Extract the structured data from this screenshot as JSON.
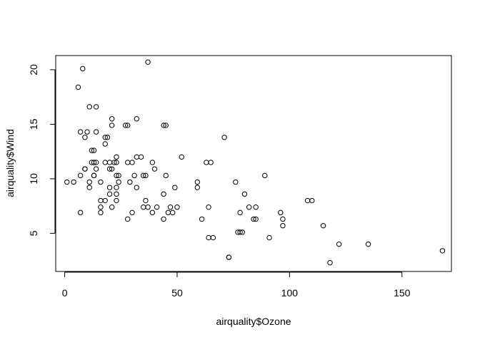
{
  "chart_data": {
    "type": "scatter",
    "title": "",
    "xlabel": "airquality$Ozone",
    "ylabel": "airquality$Wind",
    "xlim": [
      -4,
      172
    ],
    "ylim": [
      1.5,
      21.3
    ],
    "xticks": [
      0,
      50,
      100,
      150
    ],
    "yticks": [
      5,
      10,
      15,
      20
    ],
    "grid": false,
    "legend": "none",
    "marker": "open-circle",
    "series": [
      {
        "x": [
          41,
          36,
          12,
          18,
          28,
          23,
          19,
          8,
          7,
          16,
          11,
          14,
          18,
          14,
          34,
          6,
          30,
          11,
          1,
          11,
          4,
          32,
          23,
          45,
          115,
          37,
          29,
          71,
          39,
          23,
          21,
          37,
          20,
          12,
          13,
          135,
          49,
          32,
          64,
          40,
          77,
          97,
          97,
          85,
          10,
          27,
          7,
          48,
          35,
          61,
          79,
          63,
          16,
          80,
          108,
          20,
          52,
          82,
          50,
          64,
          59,
          39,
          9,
          16,
          78,
          35,
          66,
          122,
          89,
          110,
          44,
          28,
          65,
          22,
          59,
          23,
          31,
          44,
          21,
          9,
          45,
          168,
          73,
          76,
          118,
          84,
          85,
          96,
          78,
          73,
          91,
          47,
          32,
          20,
          23,
          21,
          24,
          44,
          21,
          28,
          9,
          13,
          46,
          18,
          13,
          24,
          16,
          13,
          23,
          36,
          7,
          14,
          30,
          14,
          18,
          20
        ],
        "y": [
          7.4,
          8.0,
          12.6,
          11.5,
          14.9,
          8.6,
          13.8,
          20.1,
          6.9,
          9.7,
          9.2,
          10.9,
          13.2,
          11.5,
          12.0,
          18.4,
          11.5,
          9.7,
          9.7,
          16.6,
          9.7,
          12.0,
          12.0,
          14.9,
          5.7,
          7.4,
          9.7,
          13.8,
          11.5,
          8.0,
          14.9,
          20.7,
          9.2,
          11.5,
          10.3,
          4.0,
          9.2,
          9.2,
          4.6,
          10.9,
          5.1,
          6.3,
          5.7,
          7.4,
          14.3,
          14.9,
          14.3,
          6.9,
          10.3,
          6.3,
          5.1,
          11.5,
          6.9,
          8.6,
          8.0,
          8.6,
          12.0,
          7.4,
          7.4,
          7.4,
          9.2,
          6.9,
          13.8,
          7.4,
          6.9,
          7.4,
          4.6,
          4.0,
          10.3,
          8.0,
          8.6,
          11.5,
          11.5,
          11.5,
          9.7,
          11.5,
          10.3,
          6.3,
          7.4,
          10.9,
          10.3,
          3.4,
          2.8,
          9.7,
          2.3,
          6.3,
          6.3,
          6.9,
          5.1,
          2.8,
          4.6,
          7.4,
          15.5,
          10.9,
          10.3,
          10.9,
          9.7,
          14.9,
          15.5,
          6.3,
          10.9,
          11.5,
          6.9,
          13.8,
          10.3,
          10.3,
          8.0,
          12.6,
          9.2,
          10.3,
          10.3,
          16.6,
          6.9,
          14.3,
          8.0,
          11.5
        ]
      }
    ]
  }
}
